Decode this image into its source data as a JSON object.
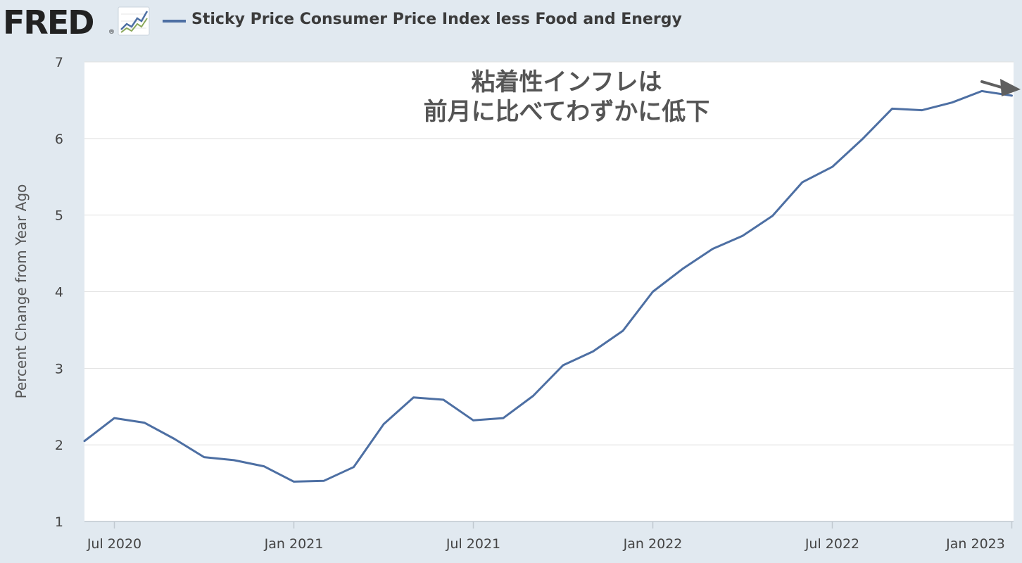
{
  "header": {
    "logo_text": "FRED",
    "legend_label": "Sticky Price Consumer Price Index less Food and Energy"
  },
  "annotation": {
    "line1": "粘着性インフレは",
    "line2": "前月に比べてわずかに低下"
  },
  "colors": {
    "background": "#e1e9f0",
    "plot_background": "#ffffff",
    "series": "#4d6fa3",
    "gridline": "#e1e1e1",
    "arrow": "#5f5f5f"
  },
  "chart_data": {
    "type": "line",
    "title": "",
    "xlabel": "",
    "ylabel": "Percent Change from Year Ago",
    "ylim": [
      1,
      7
    ],
    "yticks": [
      "1",
      "2",
      "3",
      "4",
      "5",
      "6",
      "7"
    ],
    "xtick_labels": [
      "Jul 2020",
      "Jan 2021",
      "Jul 2021",
      "Jan 2022",
      "Jul 2022",
      "Jan 2023"
    ],
    "grid": true,
    "series": [
      {
        "name": "Sticky Price Consumer Price Index less Food and Energy",
        "x": [
          "2020-06",
          "2020-07",
          "2020-08",
          "2020-09",
          "2020-10",
          "2020-11",
          "2020-12",
          "2021-01",
          "2021-02",
          "2021-03",
          "2021-04",
          "2021-05",
          "2021-06",
          "2021-07",
          "2021-08",
          "2021-09",
          "2021-10",
          "2021-11",
          "2021-12",
          "2022-01",
          "2022-02",
          "2022-03",
          "2022-04",
          "2022-05",
          "2022-06",
          "2022-07",
          "2022-08",
          "2022-09",
          "2022-10",
          "2022-11",
          "2022-12",
          "2023-01"
        ],
        "values": [
          2.05,
          2.35,
          2.29,
          2.08,
          1.84,
          1.8,
          1.72,
          1.52,
          1.53,
          1.71,
          2.27,
          2.62,
          2.59,
          2.32,
          2.35,
          2.64,
          3.04,
          3.22,
          3.49,
          4.0,
          4.3,
          4.56,
          4.73,
          4.99,
          5.43,
          5.63,
          5.99,
          6.39,
          6.37,
          6.47,
          6.62,
          6.56
        ]
      }
    ]
  }
}
